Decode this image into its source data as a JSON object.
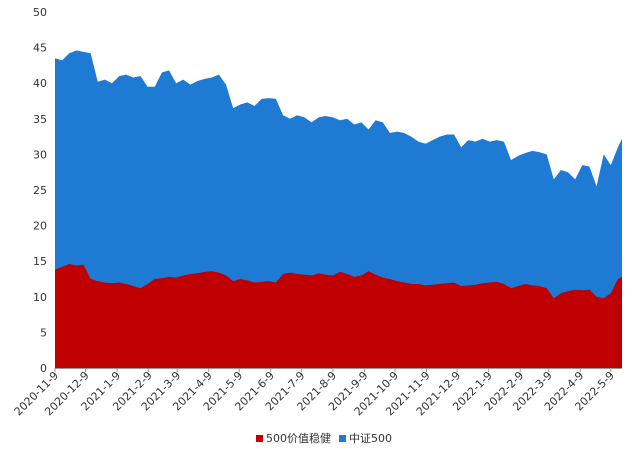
{
  "chart_data": {
    "type": "area",
    "title": "",
    "xlabel": "",
    "ylabel": "",
    "ylim": [
      0,
      50
    ],
    "yticks": [
      0,
      5,
      10,
      15,
      20,
      25,
      30,
      35,
      40,
      45,
      50
    ],
    "grid": false,
    "legend_position": "bottom",
    "stacking": "overlay",
    "x_ticks": [
      "2020-11-9",
      "2020-12-9",
      "2021-1-9",
      "2021-2-9",
      "2021-3-9",
      "2021-4-9",
      "2021-5-9",
      "2021-6-9",
      "2021-7-9",
      "2021-8-9",
      "2021-9-9",
      "2021-10-9",
      "2021-11-9",
      "2021-12-9",
      "2022-1-9",
      "2022-2-9",
      "2022-3-9",
      "2022-4-9",
      "2022-5-9"
    ],
    "x": [
      "2020-11-9",
      "2020-11-16",
      "2020-11-23",
      "2020-11-30",
      "2020-12-7",
      "2020-12-14",
      "2020-12-21",
      "2020-12-28",
      "2021-1-4",
      "2021-1-11",
      "2021-1-18",
      "2021-1-25",
      "2021-2-1",
      "2021-2-8",
      "2021-2-15",
      "2021-2-22",
      "2021-3-1",
      "2021-3-8",
      "2021-3-15",
      "2021-3-22",
      "2021-3-29",
      "2021-4-5",
      "2021-4-12",
      "2021-4-19",
      "2021-4-26",
      "2021-5-3",
      "2021-5-10",
      "2021-5-17",
      "2021-5-24",
      "2021-5-31",
      "2021-6-7",
      "2021-6-14",
      "2021-6-21",
      "2021-6-28",
      "2021-7-5",
      "2021-7-12",
      "2021-7-19",
      "2021-7-26",
      "2021-8-2",
      "2021-8-9",
      "2021-8-16",
      "2021-8-23",
      "2021-8-30",
      "2021-9-6",
      "2021-9-13",
      "2021-9-20",
      "2021-9-27",
      "2021-10-4",
      "2021-10-11",
      "2021-10-18",
      "2021-10-25",
      "2021-11-1",
      "2021-11-8",
      "2021-11-15",
      "2021-11-22",
      "2021-11-29",
      "2021-12-6",
      "2021-12-13",
      "2021-12-20",
      "2021-12-27",
      "2022-1-3",
      "2022-1-10",
      "2022-1-17",
      "2022-1-24",
      "2022-1-31",
      "2022-2-7",
      "2022-2-14",
      "2022-2-21",
      "2022-2-28",
      "2022-3-7",
      "2022-3-14",
      "2022-3-21",
      "2022-3-28",
      "2022-4-4",
      "2022-4-11",
      "2022-4-18",
      "2022-4-25",
      "2022-5-2",
      "2022-5-9",
      "2022-5-16",
      "2022-5-20"
    ],
    "series": [
      {
        "name": "中证500",
        "color": "#1f7ad4",
        "values": [
          43.5,
          43.2,
          44.2,
          44.6,
          44.4,
          44.2,
          40.2,
          40.5,
          40.0,
          41.0,
          41.2,
          40.8,
          41.0,
          39.5,
          39.5,
          41.5,
          41.8,
          40.0,
          40.5,
          39.8,
          40.3,
          40.6,
          40.8,
          41.2,
          39.8,
          36.5,
          37.0,
          37.3,
          36.8,
          37.8,
          37.9,
          37.8,
          35.5,
          35.0,
          35.5,
          35.2,
          34.5,
          35.2,
          35.4,
          35.2,
          34.8,
          35.0,
          34.2,
          34.5,
          33.5,
          34.8,
          34.5,
          33.0,
          33.2,
          33.0,
          32.5,
          31.8,
          31.5,
          32.0,
          32.5,
          32.8,
          32.8,
          31.0,
          32.0,
          31.8,
          32.2,
          31.8,
          32.0,
          31.8,
          29.2,
          29.8,
          30.2,
          30.5,
          30.3,
          30.0,
          26.5,
          27.8,
          27.5,
          26.5,
          28.5,
          28.3,
          25.5,
          30.0,
          28.5,
          31.0,
          32.2
        ]
      },
      {
        "name": "500价值稳健",
        "color": "#c00000",
        "values": [
          13.8,
          14.2,
          14.6,
          14.4,
          14.5,
          12.5,
          12.2,
          12.0,
          11.9,
          12.0,
          11.8,
          11.5,
          11.2,
          11.8,
          12.5,
          12.6,
          12.8,
          12.7,
          13.0,
          13.2,
          13.3,
          13.5,
          13.6,
          13.4,
          13.0,
          12.2,
          12.5,
          12.3,
          12.0,
          12.1,
          12.2,
          12.0,
          13.2,
          13.4,
          13.2,
          13.1,
          13.0,
          13.3,
          13.1,
          13.0,
          13.5,
          13.2,
          12.8,
          13.0,
          13.6,
          13.1,
          12.7,
          12.5,
          12.2,
          12.0,
          11.8,
          11.8,
          11.6,
          11.7,
          11.8,
          11.9,
          12.0,
          11.5,
          11.6,
          11.7,
          11.9,
          12.0,
          12.1,
          11.8,
          11.2,
          11.5,
          11.8,
          11.6,
          11.5,
          11.2,
          9.8,
          10.5,
          10.8,
          11.0,
          10.9,
          11.0,
          10.0,
          9.8,
          10.5,
          12.5,
          12.8
        ]
      }
    ],
    "legend": [
      {
        "name": "500价值稳健",
        "color": "#c00000"
      },
      {
        "name": "中证500",
        "color": "#1f7ad4"
      }
    ]
  }
}
